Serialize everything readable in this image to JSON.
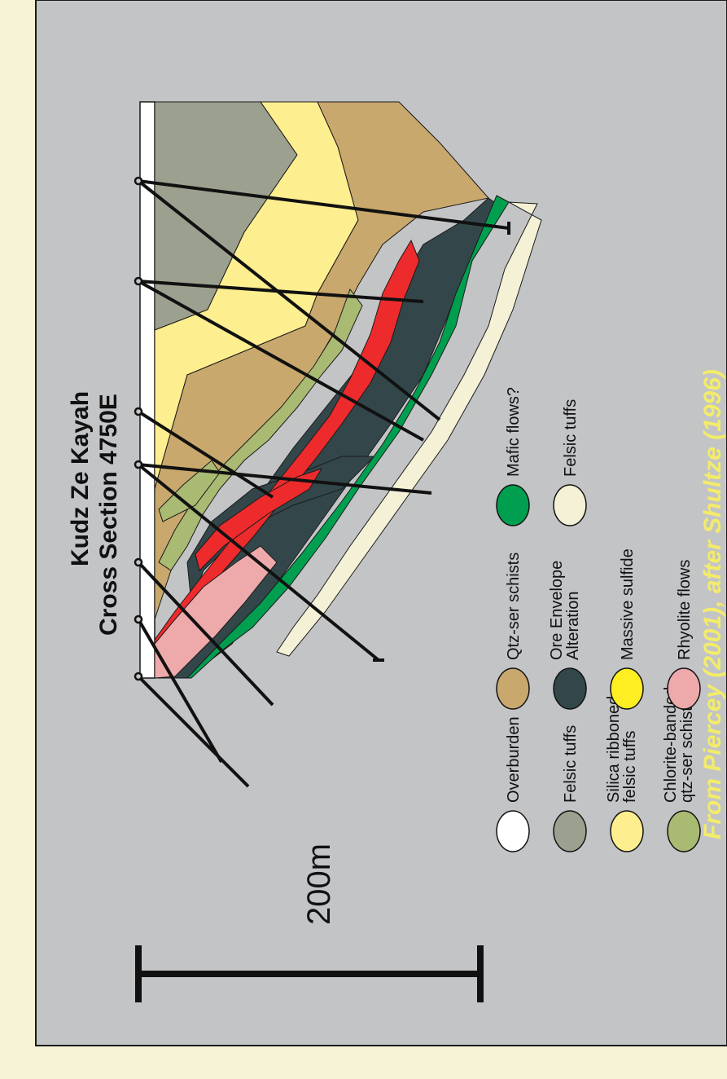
{
  "title": {
    "line1": "Kudz Ze Kayah",
    "line2": "Cross Section 4750E"
  },
  "scale_label": "200m",
  "credit": "From Piercey (2001), after Shultze (1996)",
  "colors": {
    "background": "#c3c4c6",
    "page": "#f6f2d5",
    "overburden": "#ffffff",
    "felsic_tuffs": "#9ca08e",
    "silica_ribboned": "#fdee8f",
    "chlorite_banded": "#a9ba73",
    "qtz_ser_schists": "#c9a86d",
    "ore_envelope": "#33474a",
    "massive_sulfide": "#ffee22",
    "rhyolite_flows": "#eeaaab",
    "mafic_flows": "#009f4f",
    "felsic_tuffs_lower": "#f4f1d6",
    "ore_red": "#ed2b2c",
    "credit_text": "#f3ec6a"
  },
  "legend": [
    {
      "label_lines": [
        "Overburden"
      ],
      "color": "#ffffff",
      "icon": "overburden-swatch"
    },
    {
      "label_lines": [
        "Felsic tuffs"
      ],
      "color": "#9ca08e",
      "icon": "felsic-tuffs-swatch"
    },
    {
      "label_lines": [
        "Silica ribboned",
        "felsic tuffs"
      ],
      "color": "#fdee8f",
      "icon": "silica-ribboned-swatch"
    },
    {
      "label_lines": [
        "Chlorite-banded",
        "qtz-ser schists"
      ],
      "color": "#a9ba73",
      "icon": "chlorite-banded-swatch"
    },
    {
      "label_lines": [
        "Qtz-ser schists"
      ],
      "color": "#c9a86d",
      "icon": "qtz-ser-schists-swatch"
    },
    {
      "label_lines": [
        "Ore Envelope",
        "Alteration"
      ],
      "color": "#33474a",
      "icon": "ore-envelope-swatch"
    },
    {
      "label_lines": [
        "Massive sulfide"
      ],
      "color": "#ffee22",
      "icon": "massive-sulfide-swatch"
    },
    {
      "label_lines": [
        "Rhyolite flows"
      ],
      "color": "#eeaaab",
      "icon": "rhyolite-flows-swatch"
    },
    {
      "label_lines": [
        "Mafic flows?"
      ],
      "color": "#009f4f",
      "icon": "mafic-flows-swatch"
    },
    {
      "label_lines": [
        "Felsic tuffs"
      ],
      "color": "#f4f1d6",
      "icon": "felsic-tuffs-lower-swatch"
    }
  ]
}
